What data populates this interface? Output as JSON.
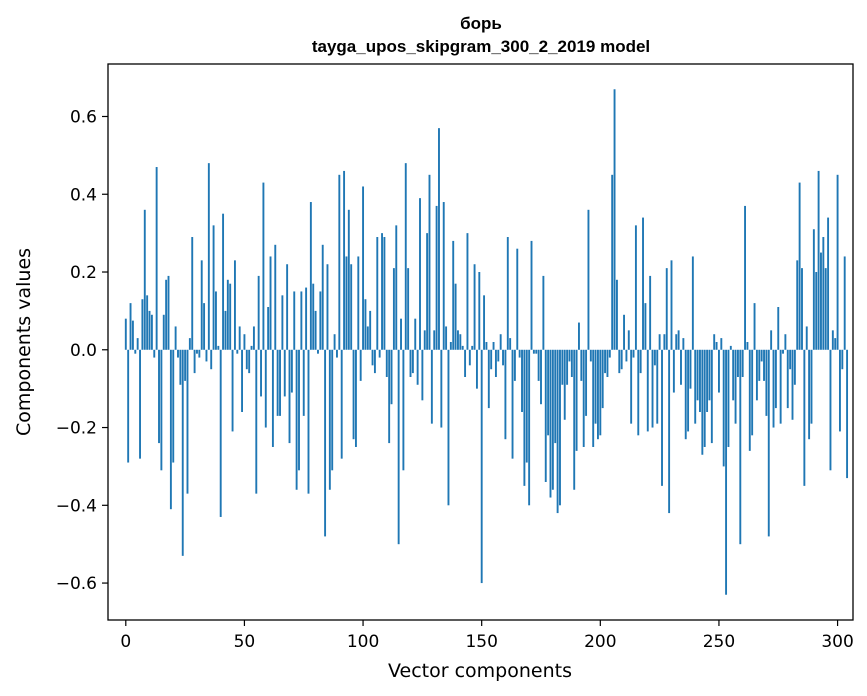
{
  "chart_data": {
    "type": "bar",
    "title": "борь",
    "subtitle": "tayga_upos_skipgram_300_2_2019 model",
    "xlabel": "Vector components",
    "ylabel": "Components values",
    "xlim": [
      -7.5,
      306.5
    ],
    "ylim": [
      -0.695,
      0.735
    ],
    "xticks": [
      0,
      50,
      100,
      150,
      200,
      250,
      300
    ],
    "yticks": [
      -0.6,
      -0.4,
      -0.2,
      0.0,
      0.2,
      0.4,
      0.6
    ],
    "xtick_labels": [
      "0",
      "50",
      "100",
      "150",
      "200",
      "250",
      "300"
    ],
    "ytick_labels": [
      "−0.6",
      "−0.4",
      "−0.2",
      "0.0",
      "0.2",
      "0.4",
      "0.6"
    ],
    "bar_color": "#1f77b4",
    "series": [
      {
        "name": "борь",
        "values": [
          0.08,
          -0.29,
          0.12,
          0.075,
          -0.01,
          0.03,
          -0.28,
          0.13,
          0.36,
          0.14,
          0.1,
          0.09,
          -0.02,
          0.47,
          -0.24,
          -0.31,
          0.09,
          0.18,
          0.19,
          -0.41,
          -0.29,
          0.06,
          -0.02,
          -0.09,
          -0.53,
          -0.08,
          -0.37,
          0.03,
          0.29,
          -0.06,
          -0.01,
          -0.02,
          0.23,
          0.12,
          -0.03,
          0.48,
          -0.05,
          0.32,
          0.15,
          0.01,
          -0.43,
          0.35,
          0.1,
          0.18,
          0.17,
          -0.21,
          0.23,
          -0.01,
          0.06,
          -0.16,
          0.04,
          -0.05,
          -0.06,
          0.01,
          0.06,
          -0.37,
          0.19,
          -0.12,
          0.43,
          -0.2,
          0.11,
          0.24,
          -0.25,
          0.27,
          -0.17,
          -0.17,
          0.14,
          -0.12,
          0.22,
          -0.24,
          -0.11,
          0.15,
          -0.36,
          -0.31,
          0.15,
          -0.17,
          0.16,
          -0.37,
          0.38,
          0.17,
          0.1,
          -0.01,
          0.15,
          0.27,
          -0.48,
          0.22,
          -0.36,
          -0.31,
          0.04,
          -0.02,
          0.45,
          -0.28,
          0.46,
          0.24,
          0.36,
          0.22,
          -0.23,
          -0.25,
          0.24,
          -0.08,
          0.42,
          0.13,
          0.06,
          0.1,
          -0.04,
          -0.06,
          0.29,
          -0.02,
          0.3,
          0.29,
          -0.07,
          -0.24,
          -0.14,
          0.21,
          0.32,
          -0.5,
          0.08,
          -0.31,
          0.48,
          0.21,
          -0.07,
          -0.06,
          0.08,
          -0.09,
          0.39,
          -0.13,
          0.05,
          0.3,
          0.45,
          -0.19,
          0.05,
          0.37,
          0.57,
          -0.2,
          0.38,
          0.06,
          -0.4,
          0.02,
          0.28,
          0.17,
          0.05,
          0.04,
          0.01,
          -0.07,
          0.3,
          -0.04,
          0.01,
          0.22,
          -0.1,
          0.2,
          -0.6,
          0.14,
          0.02,
          -0.15,
          -0.05,
          0.02,
          -0.07,
          -0.03,
          0.04,
          -0.04,
          -0.23,
          0.29,
          0.03,
          -0.28,
          -0.08,
          0.26,
          -0.02,
          -0.16,
          -0.35,
          -0.29,
          -0.4,
          0.28,
          -0.01,
          -0.01,
          -0.08,
          -0.14,
          0.19,
          -0.34,
          -0.22,
          -0.38,
          -0.36,
          -0.24,
          -0.42,
          -0.4,
          -0.09,
          -0.18,
          -0.09,
          -0.03,
          -0.07,
          -0.36,
          -0.26,
          0.07,
          -0.08,
          -0.25,
          -0.17,
          0.36,
          -0.03,
          -0.25,
          -0.19,
          -0.23,
          -0.22,
          -0.15,
          -0.06,
          -0.07,
          -0.02,
          0.45,
          0.67,
          0.18,
          -0.06,
          -0.05,
          0.09,
          -0.03,
          0.05,
          -0.19,
          -0.02,
          0.32,
          -0.22,
          -0.06,
          0.34,
          0.12,
          -0.21,
          0.19,
          -0.2,
          -0.04,
          -0.19,
          0.04,
          -0.35,
          0.04,
          0.21,
          -0.42,
          0.23,
          -0.11,
          0.04,
          0.05,
          -0.09,
          0.03,
          -0.23,
          -0.21,
          -0.1,
          0.24,
          -0.19,
          -0.13,
          -0.16,
          -0.27,
          -0.25,
          -0.16,
          -0.13,
          -0.24,
          0.04,
          0.02,
          -0.11,
          0.03,
          -0.3,
          -0.63,
          -0.25,
          0.01,
          -0.13,
          -0.19,
          -0.07,
          -0.5,
          -0.07,
          0.37,
          0.02,
          -0.26,
          -0.22,
          0.12,
          -0.13,
          -0.08,
          -0.03,
          -0.08,
          -0.17,
          -0.48,
          0.05,
          -0.2,
          -0.15,
          0.11,
          -0.19,
          -0.01,
          0.04,
          -0.15,
          -0.05,
          -0.18,
          -0.09,
          0.23,
          0.43,
          0.21,
          -0.35,
          0.06,
          -0.23,
          -0.19,
          0.31,
          0.2,
          0.46,
          0.25,
          0.29,
          0.21,
          0.34,
          -0.31,
          0.05,
          0.03,
          0.45,
          -0.21,
          -0.05,
          0.24,
          -0.33
        ]
      }
    ]
  }
}
